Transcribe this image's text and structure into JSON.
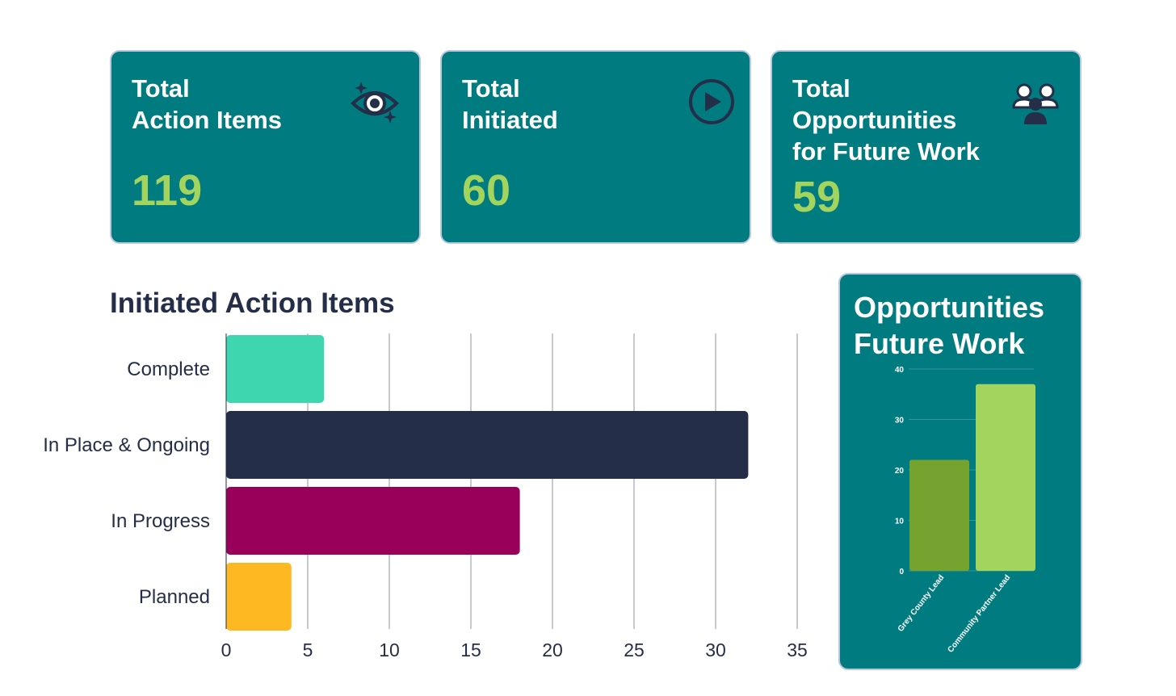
{
  "cards": [
    {
      "title_line1": "Total",
      "title_line2": "Action Items",
      "value": "119",
      "icon": "eye-icon"
    },
    {
      "title_line1": "Total",
      "title_line2": "Initiated",
      "value": "60",
      "icon": "play-icon"
    },
    {
      "title_line1": "Total",
      "title_line2": "Opportunities",
      "title_line3": "for Future Work",
      "value": "59",
      "icon": "people-icon"
    }
  ],
  "colors": {
    "card_bg": "#007b80",
    "value_green": "#a2d45e",
    "dark_navy": "#252e48",
    "teal_light": "#3dd6ae",
    "magenta": "#99005a",
    "amber": "#feb822",
    "olive_green": "#76a22f",
    "lime_green": "#a2d45e",
    "grid": "#c8c9cd"
  },
  "initiated_title": "Initiated Action Items",
  "opportunities": {
    "title_line1": "Opportunities",
    "title_line2": "Future Work"
  },
  "chart_data": [
    {
      "type": "bar",
      "orientation": "horizontal",
      "title": "Initiated Action Items",
      "categories": [
        "Complete",
        "In Place & Ongoing",
        "In Progress",
        "Planned"
      ],
      "values": [
        6,
        32,
        18,
        4
      ],
      "colors": [
        "#3dd6ae",
        "#252e48",
        "#99005a",
        "#feb822"
      ],
      "xlim": [
        0,
        35
      ],
      "xticks": [
        0,
        5,
        10,
        15,
        20,
        25,
        30,
        35
      ],
      "grid": true
    },
    {
      "type": "bar",
      "title": "Opportunities Future Work",
      "categories": [
        "Grey County Lead",
        "Community Partner Lead"
      ],
      "values": [
        22,
        37
      ],
      "colors": [
        "#76a22f",
        "#a2d45e"
      ],
      "ylim": [
        0,
        40
      ],
      "yticks": [
        0,
        10,
        20,
        30,
        40
      ],
      "grid": true
    }
  ]
}
